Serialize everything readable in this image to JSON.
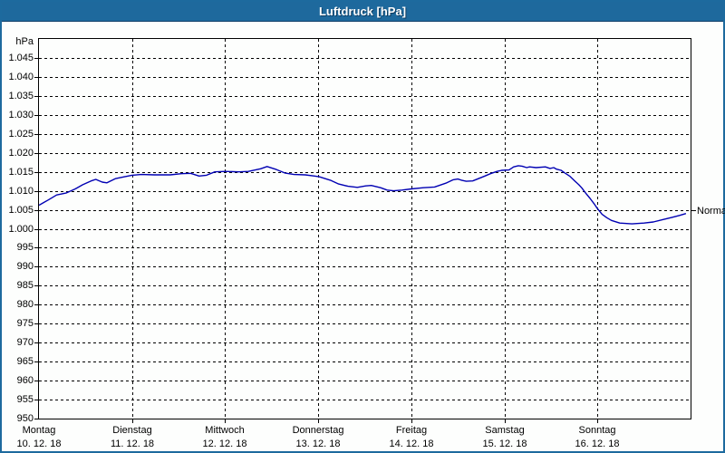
{
  "window": {
    "title": "Luftdruck [hPa]"
  },
  "colors": {
    "titlebar_bg": "#1e699d",
    "window_border": "#1d6a9e",
    "line": "#0000b3",
    "grid": "#000000",
    "background": "#fdfefd",
    "text": "#000000"
  },
  "chart_data": {
    "type": "line",
    "title": "Luftdruck [hPa]",
    "y_unit": "hPa",
    "ylim": [
      950,
      1050
    ],
    "ytick_step": 5,
    "grid": "on",
    "legend": "none",
    "yticks": [
      {
        "v": 1045,
        "label": "1.045"
      },
      {
        "v": 1040,
        "label": "1.040"
      },
      {
        "v": 1035,
        "label": "1.035"
      },
      {
        "v": 1030,
        "label": "1.030"
      },
      {
        "v": 1025,
        "label": "1.025"
      },
      {
        "v": 1020,
        "label": "1.020"
      },
      {
        "v": 1015,
        "label": "1.015"
      },
      {
        "v": 1010,
        "label": "1.010"
      },
      {
        "v": 1005,
        "label": "1.005"
      },
      {
        "v": 1000,
        "label": "1.000"
      },
      {
        "v": 995,
        "label": "995"
      },
      {
        "v": 990,
        "label": "990"
      },
      {
        "v": 985,
        "label": "985"
      },
      {
        "v": 980,
        "label": "980"
      },
      {
        "v": 975,
        "label": "975"
      },
      {
        "v": 970,
        "label": "970"
      },
      {
        "v": 965,
        "label": "965"
      },
      {
        "v": 960,
        "label": "960"
      },
      {
        "v": 955,
        "label": "955"
      },
      {
        "v": 950,
        "label": "950"
      }
    ],
    "xlim_days": [
      0,
      7
    ],
    "day_gridlines": [
      1,
      2,
      3,
      4,
      5,
      6
    ],
    "x_categories": [
      {
        "name": "Montag",
        "date": "10. 12. 18",
        "t": 0
      },
      {
        "name": "Dienstag",
        "date": "11. 12. 18",
        "t": 1
      },
      {
        "name": "Mittwoch",
        "date": "12. 12. 18",
        "t": 2
      },
      {
        "name": "Donnerstag",
        "date": "13. 12. 18",
        "t": 3
      },
      {
        "name": "Freitag",
        "date": "14. 12. 18",
        "t": 4
      },
      {
        "name": "Samstag",
        "date": "15. 12. 18",
        "t": 5
      },
      {
        "name": "Sonntag",
        "date": "16. 12. 18",
        "t": 6
      }
    ],
    "normal": {
      "label": "Normal",
      "value": 1005
    },
    "series": [
      {
        "name": "Luftdruck",
        "points": [
          [
            0,
            1006.2
          ],
          [
            0.05,
            1006.9
          ],
          [
            0.1,
            1007.6
          ],
          [
            0.19,
            1008.9
          ],
          [
            0.29,
            1009.4
          ],
          [
            0.39,
            1010.5
          ],
          [
            0.47,
            1011.6
          ],
          [
            0.56,
            1012.6
          ],
          [
            0.61,
            1013
          ],
          [
            0.68,
            1012.3
          ],
          [
            0.73,
            1012.1
          ],
          [
            0.82,
            1013.2
          ],
          [
            0.92,
            1013.7
          ],
          [
            1,
            1014.1
          ],
          [
            1.1,
            1014.3
          ],
          [
            1.24,
            1014.2
          ],
          [
            1.41,
            1014.2
          ],
          [
            1.53,
            1014.5
          ],
          [
            1.63,
            1014.6
          ],
          [
            1.72,
            1013.9
          ],
          [
            1.8,
            1014.1
          ],
          [
            1.89,
            1015
          ],
          [
            2,
            1015.1
          ],
          [
            2.15,
            1015
          ],
          [
            2.25,
            1015.1
          ],
          [
            2.38,
            1015.8
          ],
          [
            2.45,
            1016.4
          ],
          [
            2.55,
            1015.6
          ],
          [
            2.64,
            1014.7
          ],
          [
            2.74,
            1014.3
          ],
          [
            2.86,
            1014.2
          ],
          [
            2.96,
            1013.9
          ],
          [
            3.01,
            1013.7
          ],
          [
            3.13,
            1012.8
          ],
          [
            3.22,
            1011.8
          ],
          [
            3.32,
            1011.2
          ],
          [
            3.42,
            1010.9
          ],
          [
            3.51,
            1011.3
          ],
          [
            3.57,
            1011.4
          ],
          [
            3.67,
            1010.8
          ],
          [
            3.74,
            1010.2
          ],
          [
            3.81,
            1010
          ],
          [
            3.9,
            1010.2
          ],
          [
            4,
            1010.5
          ],
          [
            4.13,
            1010.8
          ],
          [
            4.25,
            1011
          ],
          [
            4.37,
            1012
          ],
          [
            4.45,
            1012.9
          ],
          [
            4.5,
            1013.1
          ],
          [
            4.54,
            1012.8
          ],
          [
            4.59,
            1012.5
          ],
          [
            4.66,
            1012.6
          ],
          [
            4.73,
            1013.3
          ],
          [
            4.79,
            1013.9
          ],
          [
            4.85,
            1014.5
          ],
          [
            4.92,
            1015.1
          ],
          [
            4.97,
            1015.4
          ],
          [
            5.05,
            1015.5
          ],
          [
            5.1,
            1016.3
          ],
          [
            5.15,
            1016.6
          ],
          [
            5.19,
            1016.5
          ],
          [
            5.24,
            1016.1
          ],
          [
            5.27,
            1016.3
          ],
          [
            5.34,
            1016.1
          ],
          [
            5.44,
            1016.3
          ],
          [
            5.49,
            1015.9
          ],
          [
            5.53,
            1016.1
          ],
          [
            5.56,
            1015.7
          ],
          [
            5.61,
            1015.4
          ],
          [
            5.65,
            1014.7
          ],
          [
            5.7,
            1013.9
          ],
          [
            5.73,
            1013.2
          ],
          [
            5.76,
            1012.5
          ],
          [
            5.8,
            1011.6
          ],
          [
            5.83,
            1010.8
          ],
          [
            5.87,
            1009.5
          ],
          [
            5.92,
            1008
          ],
          [
            5.96,
            1006.7
          ],
          [
            6,
            1005.3
          ],
          [
            6.05,
            1003.8
          ],
          [
            6.1,
            1002.9
          ],
          [
            6.15,
            1002.2
          ],
          [
            6.24,
            1001.5
          ],
          [
            6.37,
            1001.3
          ],
          [
            6.5,
            1001.5
          ],
          [
            6.6,
            1001.8
          ],
          [
            6.7,
            1002.4
          ],
          [
            6.8,
            1003
          ],
          [
            6.88,
            1003.5
          ],
          [
            6.95,
            1004
          ]
        ]
      }
    ]
  }
}
